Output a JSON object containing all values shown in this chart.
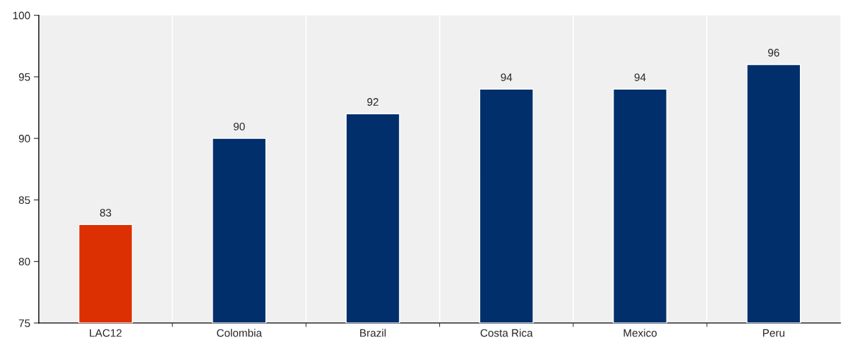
{
  "chart_data": {
    "type": "bar",
    "categories": [
      "LAC12",
      "Colombia",
      "Brazil",
      "Costa Rica",
      "Mexico",
      "Peru"
    ],
    "values": [
      83,
      90,
      92,
      94,
      94,
      96
    ],
    "colors": [
      "#dc2f02",
      "#002f6c",
      "#002f6c",
      "#002f6c",
      "#002f6c",
      "#002f6c"
    ],
    "ylim": [
      75,
      100
    ],
    "yticks": [
      75,
      80,
      85,
      90,
      95,
      100
    ],
    "grid": "x",
    "data_labels": true
  }
}
